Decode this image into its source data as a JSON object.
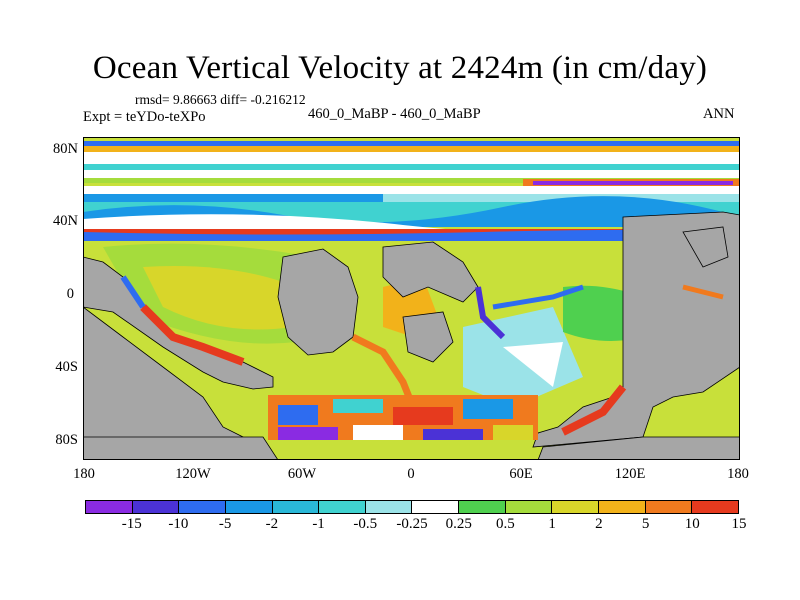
{
  "title": "Ocean Vertical Velocity at 2424m (in cm/day)",
  "stats": "rmsd= 9.86663 diff= -0.216212",
  "expt": "Expt = teYDo-teXPo",
  "center_label": "460_0_MaBP - 460_0_MaBP",
  "season": "ANN",
  "y_ticks": [
    "80N",
    "40N",
    "0",
    "40S",
    "80S"
  ],
  "x_ticks": [
    "180",
    "120W",
    "60W",
    "0",
    "60E",
    "120E",
    "180"
  ],
  "colorbar": {
    "labels": [
      "-15",
      "-10",
      "-5",
      "-2",
      "-1",
      "-0.5",
      "-0.25",
      "0.25",
      "0.5",
      "1",
      "2",
      "5",
      "10",
      "15"
    ],
    "colors": [
      "#8a2be2",
      "#4b32d6",
      "#2e6cf0",
      "#1a98e6",
      "#2ab8d8",
      "#40d2d0",
      "#9be3e8",
      "#ffffff",
      "#4fd04f",
      "#a5dc3c",
      "#d8d62a",
      "#f2b21a",
      "#f07a1e",
      "#e63a1e"
    ]
  },
  "land_color": "#a6a6a6"
}
